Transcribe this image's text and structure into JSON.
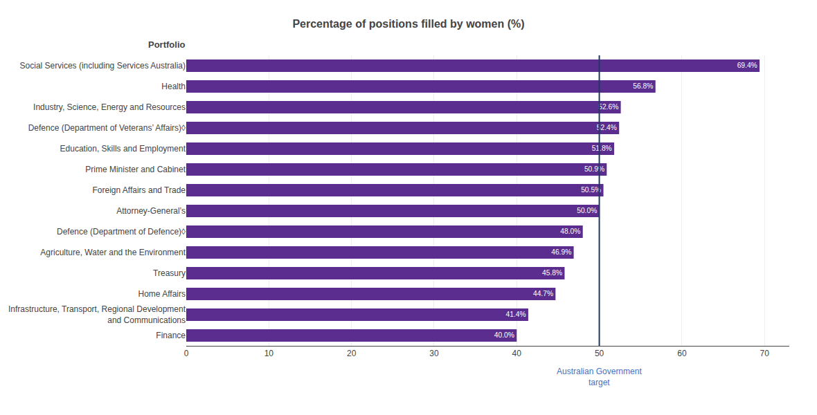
{
  "chart_data": {
    "type": "bar",
    "orientation": "horizontal",
    "title": "Percentage of positions filled by women (%)",
    "y_label": "Portfolio",
    "categories": [
      "Finance",
      "Infrastructure, Transport, Regional Development\nand Communications",
      "Home Affairs",
      "Treasury",
      "Agriculture, Water and the Environment",
      "Defence (Department of Defence)◊",
      "Attorney-General’s",
      "Foreign Affairs and Trade",
      "Prime Minister and Cabinet",
      "Education, Skills and Employment",
      "Defence (Department of Veterans’ Affairs)◊",
      "Industry, Science, Energy and Resources",
      "Health",
      "Social Services (including Services Australia)"
    ],
    "values": [
      40.0,
      41.4,
      44.7,
      45.8,
      46.9,
      48.0,
      50.0,
      50.5,
      50.9,
      51.8,
      52.4,
      52.6,
      56.8,
      69.4
    ],
    "value_labels": [
      "40.0%",
      "41.4%",
      "44.7%",
      "45.8%",
      "46.9%",
      "48.0%",
      "50.0%",
      "50.5%",
      "50.9%",
      "51.8%",
      "52.4%",
      "52.6%",
      "56.8%",
      "69.4%"
    ],
    "data_labels": true,
    "color": "#5B2D8E",
    "xlim": [
      0,
      73
    ],
    "xticks": [
      0,
      10,
      20,
      30,
      40,
      50,
      60,
      70
    ],
    "grid": true,
    "annotations": [
      {
        "text": "Australian Government\ntarget",
        "x": 50,
        "color": "#4472C4",
        "line_color": "#1F3864"
      }
    ]
  }
}
